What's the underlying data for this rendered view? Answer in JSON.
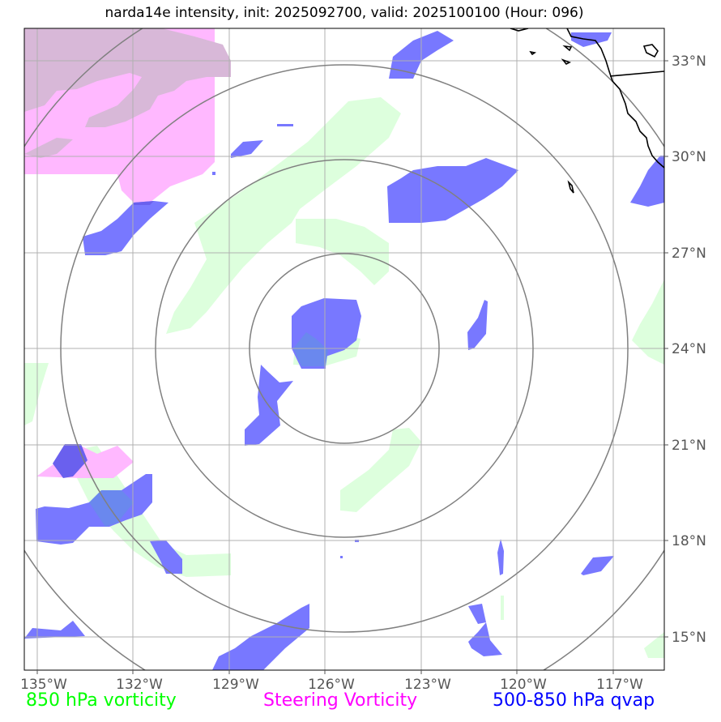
{
  "title": "narda14e intensity, init: 2025092700, valid: 2025100100 (Hour: 096)",
  "legend": {
    "vort850": {
      "label": "850 hPa vorticity",
      "color": "#00ff00"
    },
    "steering": {
      "label": "Steering Vorticity",
      "color": "#ff00ff"
    },
    "qvap": {
      "label": "500-850 hPa qvap",
      "color": "#0000ff"
    }
  },
  "colors": {
    "vort850_fill": "#ddffdd",
    "steering_fill": "#ffb8ff",
    "steering_overlap": "#d8b8d8",
    "qvap_fill": "#7878ff",
    "qvap_overlap": "#6a60ee",
    "grid": "#b0b0b0",
    "rings": "#808080",
    "coast": "#000000"
  },
  "axes": {
    "lon_labels": [
      "135°W",
      "132°W",
      "129°W",
      "126°W",
      "123°W",
      "120°W",
      "117°W"
    ],
    "lat_labels": [
      "33°N",
      "30°N",
      "27°N",
      "24°N",
      "21°N",
      "18°N",
      "15°N"
    ]
  },
  "map": {
    "extent_lon": [
      -135.4,
      -116.4
    ],
    "extent_lat": [
      14.0,
      33.8
    ],
    "center": {
      "lon": -125.5,
      "lat": 24.0
    },
    "rings": [
      "ring-1",
      "ring-2",
      "ring-3",
      "ring-4"
    ],
    "gridlines": "on"
  }
}
